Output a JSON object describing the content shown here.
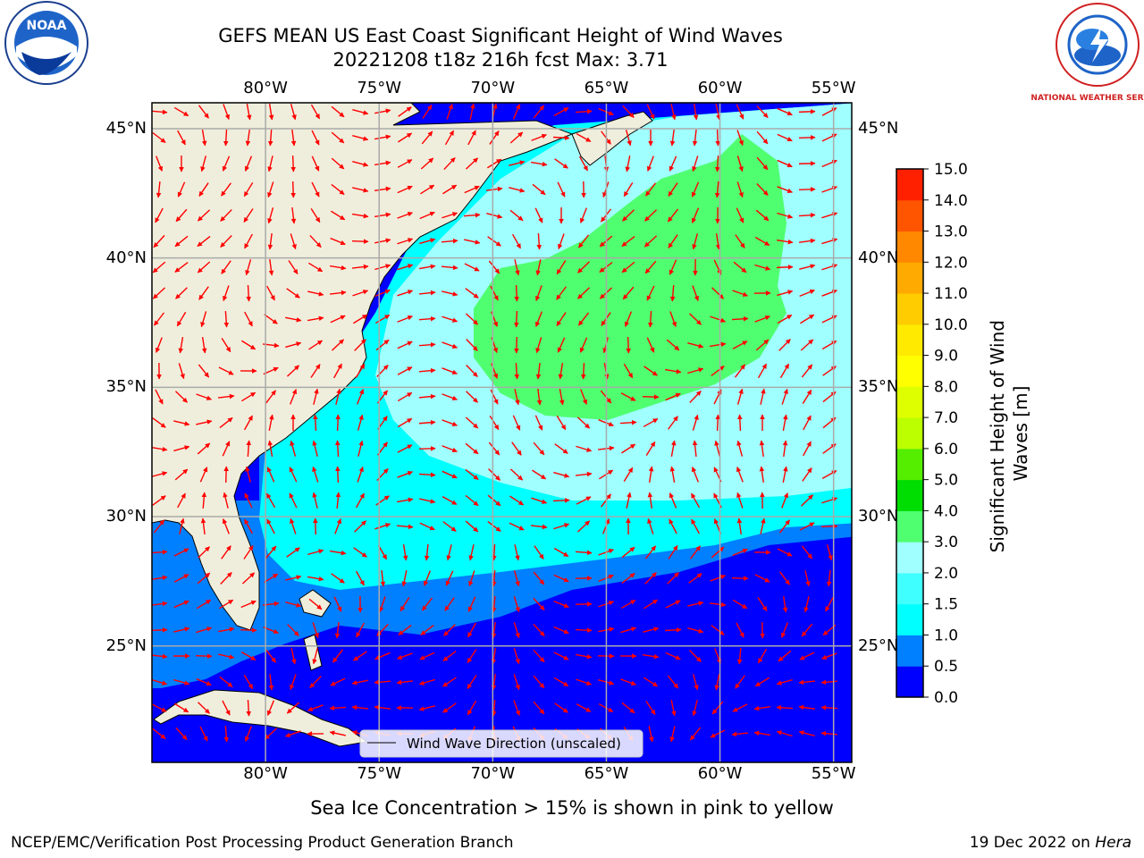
{
  "title_line1": "GEFS MEAN US East Coast Significant Height of Wind Waves",
  "title_line2": "20221208 t18z 216h fcst   Max: 3.71",
  "logos": {
    "left": "NOAA",
    "right": "NATIONAL WEATHER SERVICE"
  },
  "map": {
    "lon_ticks": [
      "80°W",
      "75°W",
      "70°W",
      "65°W",
      "60°W",
      "55°W"
    ],
    "lat_ticks": [
      "45°N",
      "40°N",
      "35°N",
      "30°N",
      "25°N"
    ],
    "lon_range": [
      -85,
      -54.2
    ],
    "lat_range": [
      20.5,
      46
    ],
    "legend_label": "Wind Wave Direction (unscaled)"
  },
  "colorbar": {
    "label": "Significant Height of Wind Waves [m]",
    "ticks": [
      "0.0",
      "0.5",
      "1.0",
      "1.5",
      "2.0",
      "3.0",
      "4.0",
      "5.0",
      "6.0",
      "7.0",
      "8.0",
      "9.0",
      "10.0",
      "11.0",
      "12.0",
      "13.0",
      "14.0",
      "15.0"
    ],
    "colors": [
      "#0000ff",
      "#0080ff",
      "#00ffff",
      "#40ffff",
      "#a0ffff",
      "#50ff70",
      "#00dd00",
      "#55ee00",
      "#bbff00",
      "#ddff00",
      "#ffff00",
      "#ffea00",
      "#ffcc00",
      "#ffaa00",
      "#ff8800",
      "#ff5500",
      "#ff2000"
    ]
  },
  "colors": {
    "land": "#efeedc",
    "arrow": "#ff0000",
    "grid": "#aaaaaa",
    "ocean_deep": "#0000ff",
    "ocean_mid": "#0080ff",
    "ocean_light": "#00ffff",
    "ocean_pale": "#a0ffff",
    "wave_high": "#50ff70"
  },
  "subtitle": "Sea Ice Concentration > 15% is shown in pink to yellow",
  "footer_left": "NCEP/EMC/Verification Post Processing Product Generation Branch",
  "footer_right_date": "19 Dec 2022 on ",
  "footer_right_host": "Hera"
}
